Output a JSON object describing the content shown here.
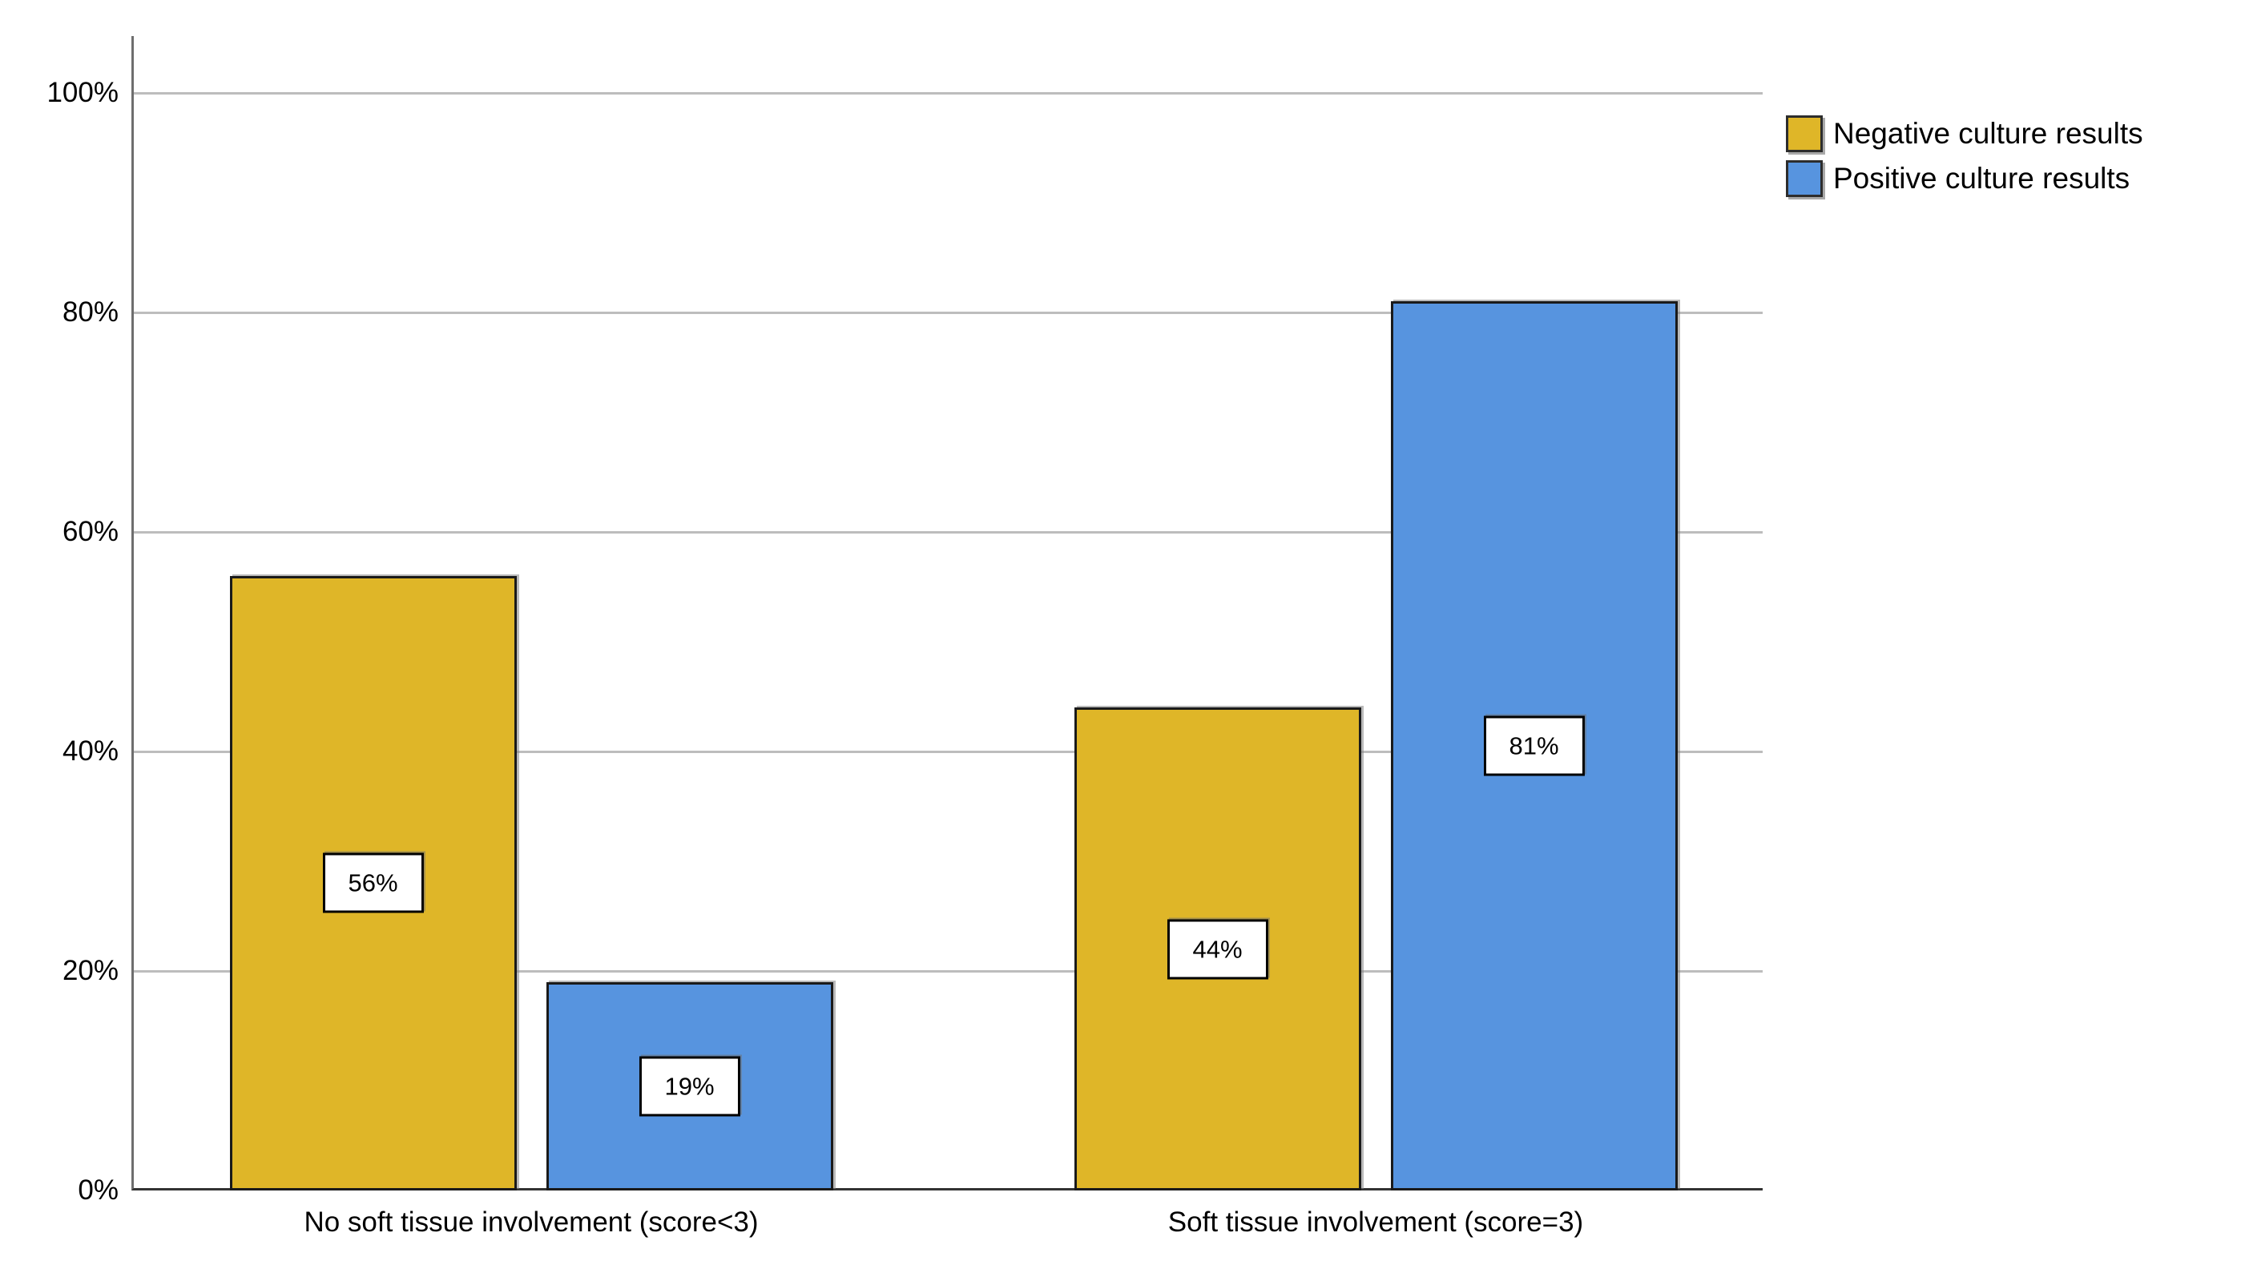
{
  "chart_data": {
    "type": "bar",
    "title": "",
    "xlabel": "",
    "ylabel": "",
    "categories": [
      "No soft tissue involvement (score<3)",
      "Soft tissue involvement (score=3)"
    ],
    "series": [
      {
        "name": "Negative culture results",
        "color": "#dfb628",
        "values": [
          56,
          44
        ],
        "value_labels": [
          "56%",
          "44%"
        ]
      },
      {
        "name": "Positive culture results",
        "color": "#5794df",
        "values": [
          19,
          81
        ],
        "value_labels": [
          "19%",
          "81%"
        ]
      }
    ],
    "ylim": [
      0,
      100
    ],
    "yticks": [
      {
        "value": 0,
        "label": "0%"
      },
      {
        "value": 20,
        "label": "20%"
      },
      {
        "value": 40,
        "label": "40%"
      },
      {
        "value": 60,
        "label": "60%"
      },
      {
        "value": 80,
        "label": "80%"
      },
      {
        "value": 100,
        "label": "100%"
      }
    ],
    "grid": true,
    "legend_position": "top-right",
    "value_label_style": "white box with black border, centered inside bar"
  },
  "colors": {
    "background": "#ffffff",
    "gridline": "#bdbdbd",
    "axis_left": "#6e6e6e",
    "axis_bottom": "#333333",
    "bar_border": "#1a1a1a",
    "text": "#000000",
    "value_box_background": "#ffffff",
    "value_box_border": "#000000"
  }
}
